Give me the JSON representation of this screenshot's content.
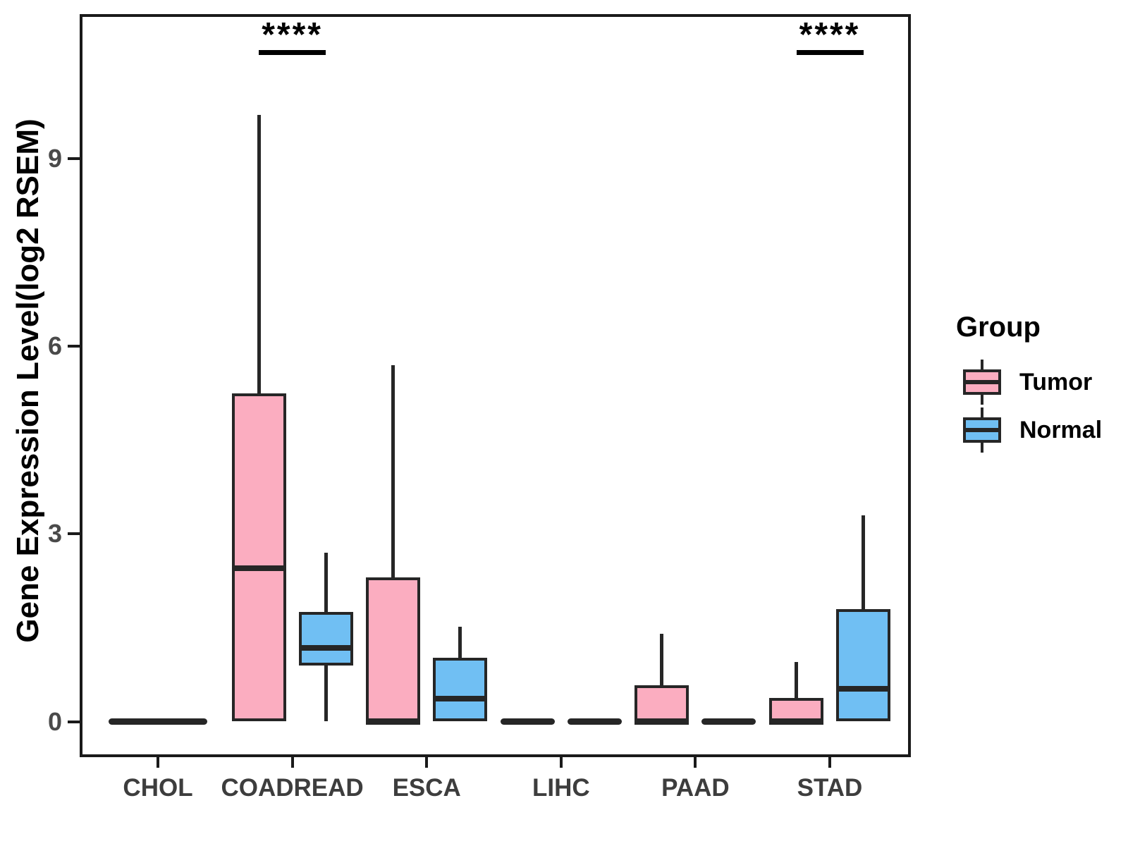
{
  "chart_data": {
    "type": "boxplot",
    "title": "",
    "xlabel": "",
    "ylabel": "Gene Expression Level(log2 RSEM)",
    "categories": [
      "CHOL",
      "COADREAD",
      "ESCA",
      "LIHC",
      "PAAD",
      "STAD"
    ],
    "y_ticks": [
      0,
      3,
      6,
      9
    ],
    "ylim": [
      -0.5,
      11.5
    ],
    "grid": false,
    "legend": {
      "title": "Group",
      "position": "right",
      "entries": [
        {
          "label": "Tumor",
          "color": "#FBADC0"
        },
        {
          "label": "Normal",
          "color": "#70BFF3"
        }
      ]
    },
    "colors": {
      "tumor_fill": "#FBADC0",
      "normal_fill": "#70BFF3",
      "line": "#262626",
      "panel_border": "#1a1a1a"
    },
    "series": [
      {
        "name": "Tumor",
        "color": "#FBADC0",
        "boxes": [
          {
            "category": "CHOL",
            "min": 0,
            "q1": 0,
            "median": 0,
            "q3": 0,
            "max": 0
          },
          {
            "category": "COADREAD",
            "min": 0,
            "q1": 0,
            "median": 2.45,
            "q3": 5.25,
            "max": 9.7
          },
          {
            "category": "ESCA",
            "min": 0,
            "q1": 0,
            "median": 0,
            "q3": 2.3,
            "max": 5.7
          },
          {
            "category": "LIHC",
            "min": 0,
            "q1": 0,
            "median": 0,
            "q3": 0,
            "max": 0
          },
          {
            "category": "PAAD",
            "min": 0,
            "q1": 0,
            "median": 0,
            "q3": 0.58,
            "max": 1.4
          },
          {
            "category": "STAD",
            "min": 0,
            "q1": 0,
            "median": 0,
            "q3": 0.38,
            "max": 0.95
          }
        ]
      },
      {
        "name": "Normal",
        "color": "#70BFF3",
        "boxes": [
          {
            "category": "CHOL",
            "min": 0,
            "q1": 0,
            "median": 0,
            "q3": 0,
            "max": 0
          },
          {
            "category": "COADREAD",
            "min": 0,
            "q1": 0.9,
            "median": 1.18,
            "q3": 1.75,
            "max": 2.7
          },
          {
            "category": "ESCA",
            "min": 0,
            "q1": 0,
            "median": 0.37,
            "q3": 1.02,
            "max": 1.52
          },
          {
            "category": "LIHC",
            "min": 0,
            "q1": 0,
            "median": 0,
            "q3": 0,
            "max": 0
          },
          {
            "category": "PAAD",
            "min": 0,
            "q1": 0,
            "median": 0,
            "q3": 0,
            "max": 0
          },
          {
            "category": "STAD",
            "min": 0,
            "q1": 0,
            "median": 0.52,
            "q3": 1.8,
            "max": 3.3
          }
        ]
      }
    ],
    "annotations": [
      {
        "category": "COADREAD",
        "label": "****"
      },
      {
        "category": "STAD",
        "label": "****"
      }
    ]
  }
}
